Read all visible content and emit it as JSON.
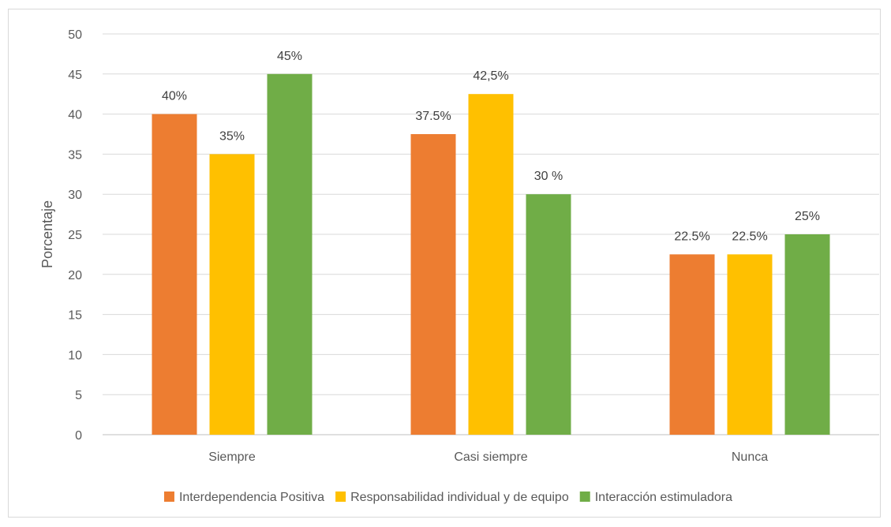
{
  "colors": {
    "series": [
      "#ed7d31",
      "#ffc000",
      "#70ad47"
    ],
    "grid": "#d9d9d9",
    "axis": "#bfbfbf"
  },
  "chart_data": {
    "type": "bar",
    "categories": [
      "Siempre",
      "Casi siempre",
      "Nunca"
    ],
    "series": [
      {
        "name": "Interdependencia Positiva",
        "values": [
          40,
          37.5,
          22.5
        ],
        "labels": [
          "40%",
          "37.5%",
          "22.5%"
        ]
      },
      {
        "name": "Responsabilidad individual y de equipo",
        "values": [
          35,
          42.5,
          22.5
        ],
        "labels": [
          "35%",
          "42,5%",
          "22.5%"
        ]
      },
      {
        "name": "Interacción estimuladora",
        "values": [
          45,
          30,
          25
        ],
        "labels": [
          "45%",
          "30 %",
          "25%"
        ]
      }
    ],
    "title": "",
    "xlabel": "",
    "ylabel": "Porcentaje",
    "ylim": [
      0,
      50
    ],
    "yticks": [
      0,
      5,
      10,
      15,
      20,
      25,
      30,
      35,
      40,
      45,
      50
    ],
    "grid": true,
    "legend_position": "bottom"
  }
}
